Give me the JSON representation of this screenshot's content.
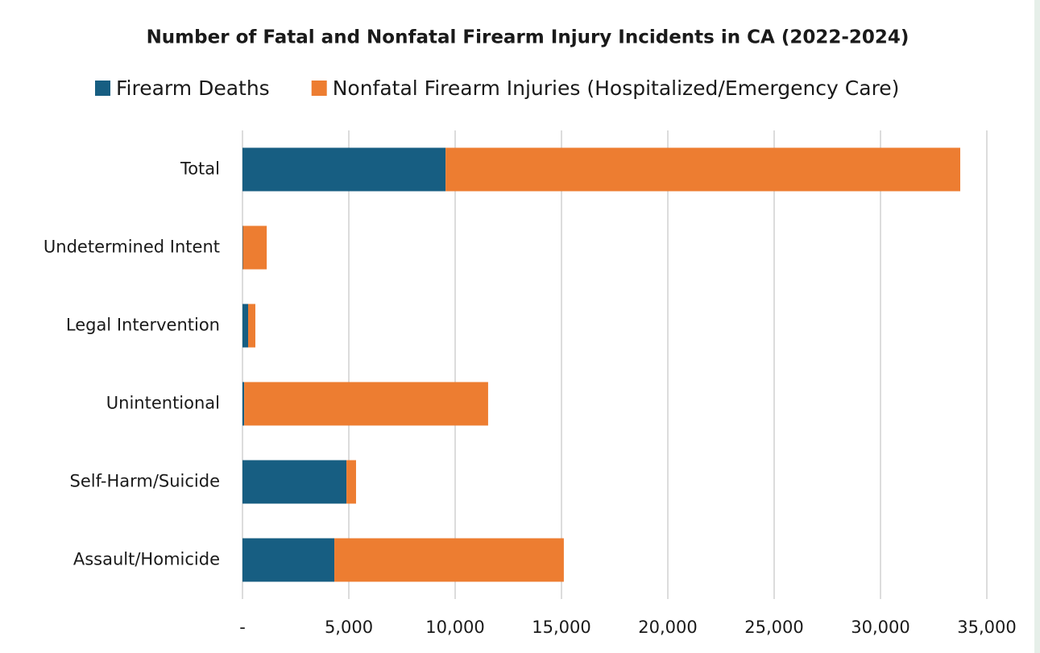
{
  "chart_data": {
    "type": "bar",
    "orientation": "horizontal",
    "stacked": true,
    "title": "Number of Fatal and Nonfatal Firearm Injury Incidents in CA (2022-2024)",
    "categories": [
      "Total",
      "Undetermined Intent",
      "Legal Intervention",
      "Unintentional",
      "Self-Harm/Suicide",
      "Assault/Homicide"
    ],
    "series": [
      {
        "name": "Firearm Deaths",
        "color": "#175e82",
        "values": [
          9550,
          20,
          265,
          80,
          4890,
          4320
        ]
      },
      {
        "name": "Nonfatal Firearm Injuries (Hospitalized/Emergency Care)",
        "color": "#ed7d31",
        "values": [
          24200,
          1120,
          340,
          11470,
          450,
          10790
        ]
      }
    ],
    "xlim": [
      0,
      35000
    ],
    "xticks": [
      {
        "value": 0,
        "label": "-"
      },
      {
        "value": 5000,
        "label": "5,000"
      },
      {
        "value": 10000,
        "label": "10,000"
      },
      {
        "value": 15000,
        "label": "15,000"
      },
      {
        "value": 20000,
        "label": "20,000"
      },
      {
        "value": 25000,
        "label": "25,000"
      },
      {
        "value": 30000,
        "label": "30,000"
      },
      {
        "value": 35000,
        "label": "35,000"
      }
    ],
    "grid": true,
    "legend": "top"
  }
}
